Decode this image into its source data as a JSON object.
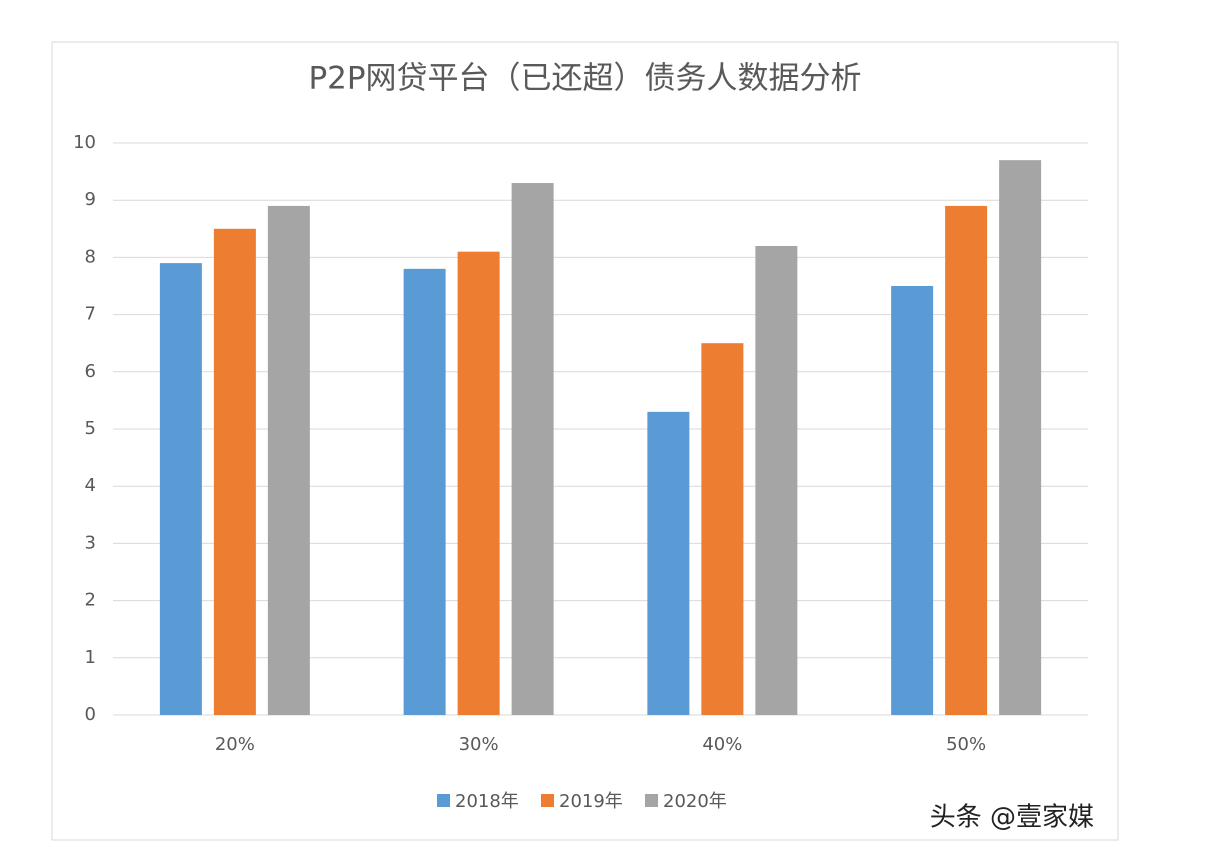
{
  "chart_data": {
    "type": "bar",
    "title": "P2P网贷平台（已还超）债务人数据分析",
    "categories": [
      "20%",
      "30%",
      "40%",
      "50%"
    ],
    "series": [
      {
        "name": "2018年",
        "color": "#5b9bd5",
        "values": [
          7.9,
          7.8,
          5.3,
          7.5
        ]
      },
      {
        "name": "2019年",
        "color": "#ed7d31",
        "values": [
          8.5,
          8.1,
          6.5,
          8.9
        ]
      },
      {
        "name": "2020年",
        "color": "#a5a5a5",
        "values": [
          8.9,
          9.3,
          8.2,
          9.7
        ]
      }
    ],
    "ylim": [
      0,
      10
    ],
    "yticks": [
      0,
      1,
      2,
      3,
      4,
      5,
      6,
      7,
      8,
      9,
      10
    ],
    "grid": true,
    "legend": "bottom"
  },
  "watermark": "头条 @壹家媒"
}
